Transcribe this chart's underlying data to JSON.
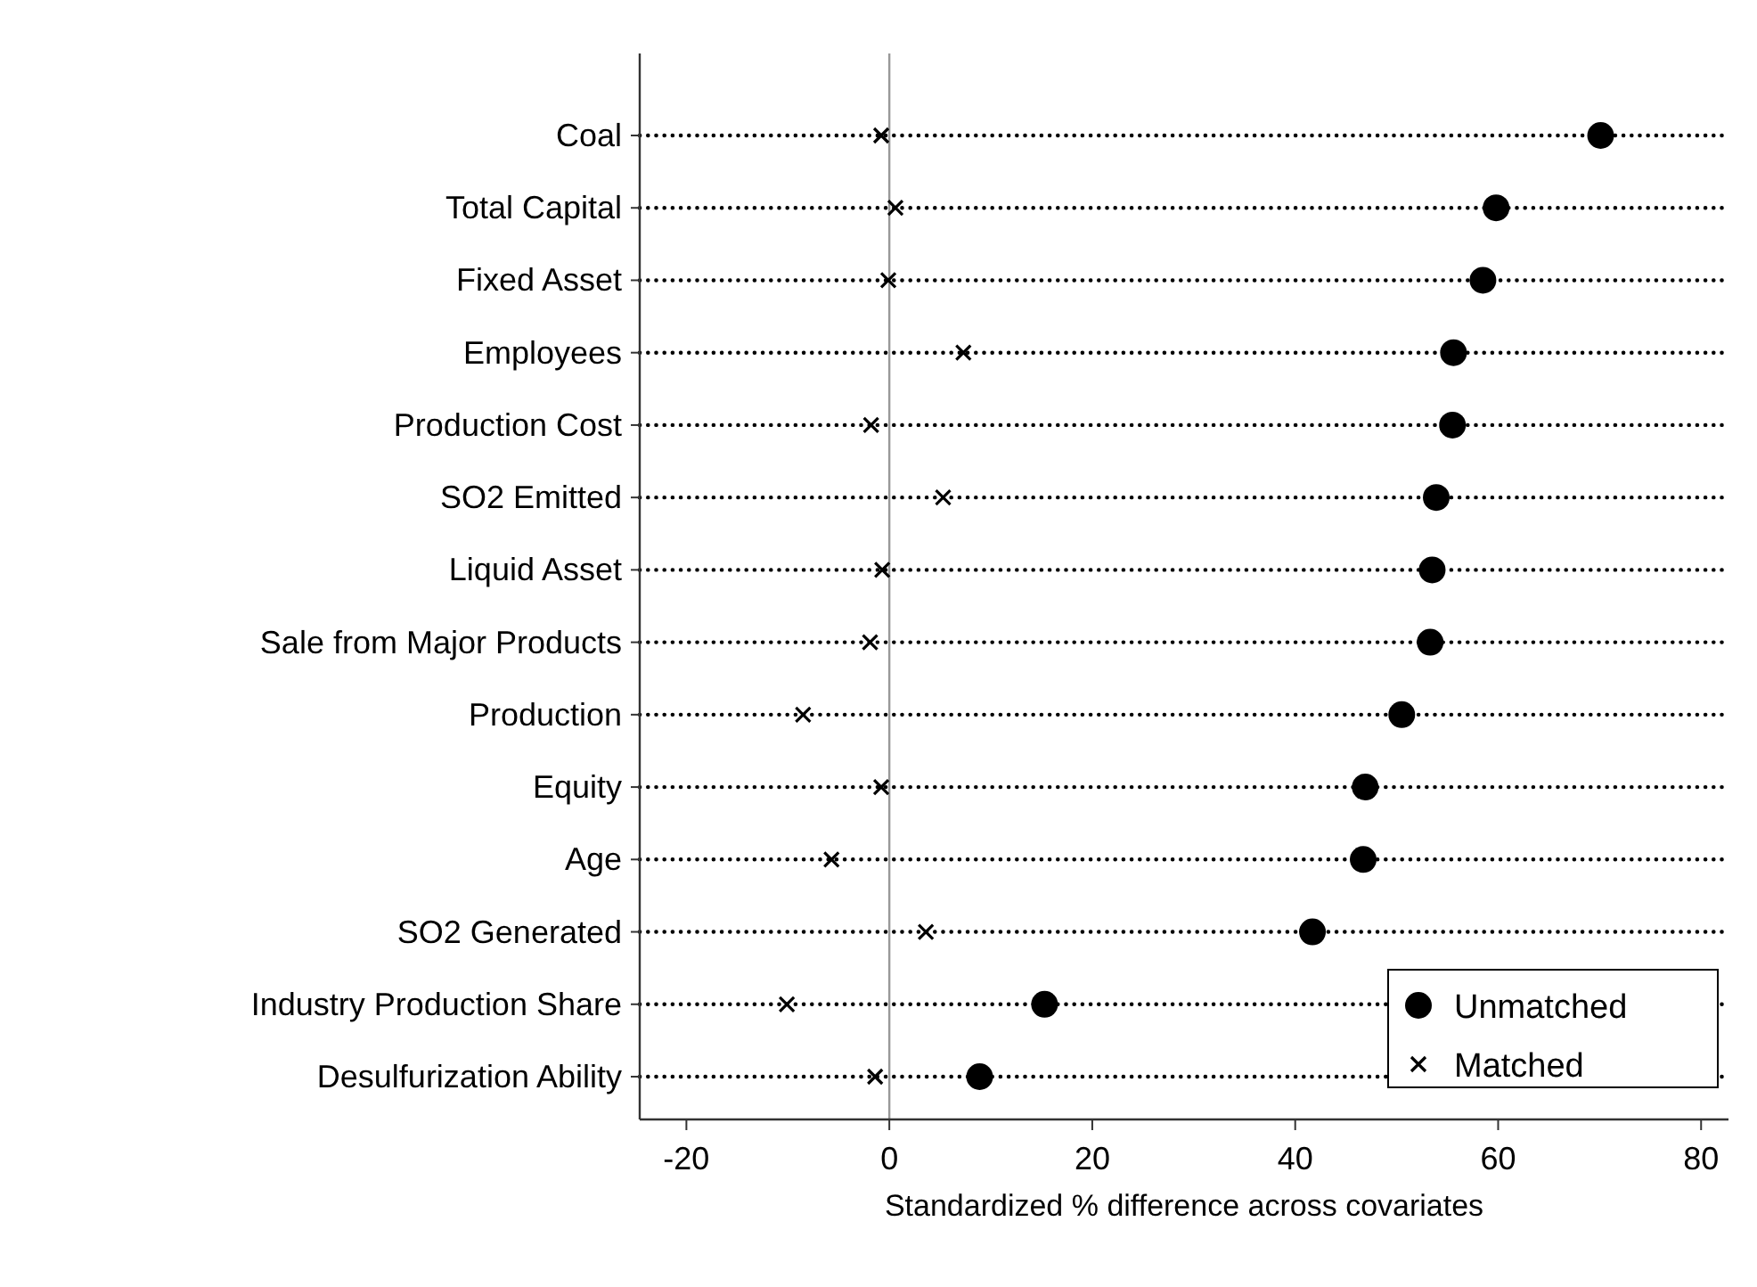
{
  "chart_data": {
    "type": "scatter",
    "orientation": "horizontal",
    "xlabel": "Standardized % difference across covariates",
    "categories": [
      "Coal",
      "Total Capital",
      "Fixed Asset",
      "Employees",
      "Production Cost",
      "SO2 Emitted",
      "Liquid Asset",
      "Sale from Major Products",
      "Production",
      "Equity",
      "Age",
      "SO2 Generated",
      "Industry Production Share",
      "Desulfurization Ability"
    ],
    "series": [
      {
        "name": "Unmatched",
        "color": "#000000",
        "marker": "circle",
        "values": [
          70.1,
          59.8,
          58.5,
          55.6,
          55.5,
          53.9,
          53.5,
          53.3,
          50.5,
          46.9,
          46.7,
          41.7,
          15.3,
          8.9
        ]
      },
      {
        "name": "Matched",
        "color": "#000000",
        "marker": "cross",
        "values": [
          -0.8,
          0.6,
          -0.1,
          7.3,
          -1.8,
          5.3,
          -0.7,
          -1.9,
          -8.5,
          -0.8,
          -5.7,
          3.6,
          -10.1,
          -1.4
        ]
      }
    ],
    "xlim": [
      -24.6,
      82.7
    ],
    "xticks": [
      -20,
      0,
      20,
      40,
      60,
      80
    ],
    "ref_lines": [
      {
        "axis": "x",
        "value": 0,
        "color": "#999999"
      }
    ],
    "grid": "y",
    "legend": "bottom right"
  }
}
